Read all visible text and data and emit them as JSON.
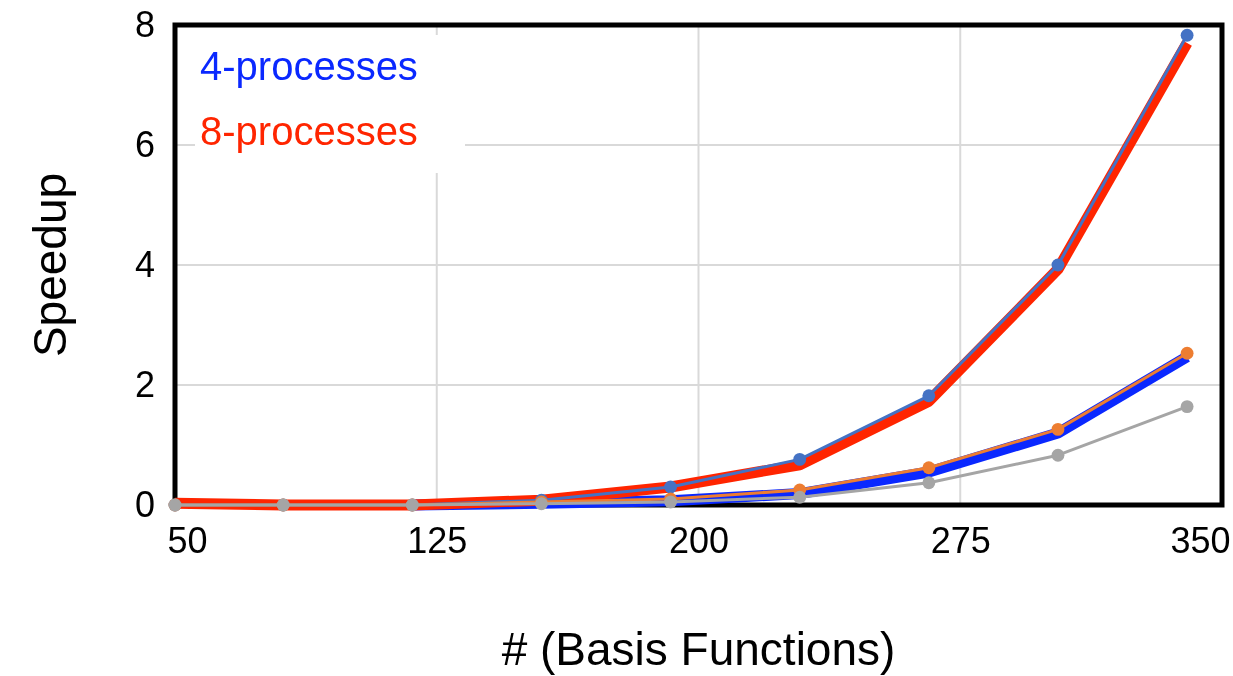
{
  "chart_data": {
    "type": "line",
    "xlabel": "# (Basis Functions)",
    "ylabel": "Speedup",
    "x": [
      50,
      81,
      118,
      155,
      192,
      229,
      266,
      303,
      340
    ],
    "xlim": [
      50,
      350
    ],
    "xticks": [
      50,
      125,
      200,
      275,
      350
    ],
    "ylim": [
      0,
      8
    ],
    "yticks": [
      0,
      2,
      4,
      6,
      8
    ],
    "grid": true,
    "legend": "top left",
    "series": [
      {
        "color": "#4472c4",
        "marker": "circle",
        "values": [
          0,
          0,
          0,
          0.08,
          0.3,
          0.76,
          1.82,
          4.0,
          7.83
        ]
      },
      {
        "color": "#ed7d31",
        "marker": "circle",
        "values": [
          0,
          0,
          0,
          0.05,
          0.1,
          0.25,
          0.62,
          1.26,
          2.53
        ]
      },
      {
        "color": "#a5a5a5",
        "marker": "circle",
        "values": [
          0,
          0,
          0,
          0.02,
          0.05,
          0.13,
          0.37,
          0.83,
          1.64
        ]
      },
      {
        "name": "4-processes",
        "color": "#0a28ff",
        "marker": "none",
        "values": [
          null,
          null,
          0,
          0.03,
          0.07,
          0.19,
          0.55,
          1.2,
          2.47
        ]
      },
      {
        "name": "8-processes",
        "color": "#ff2500",
        "marker": "none",
        "values": [
          0.03,
          0,
          0,
          0.08,
          0.3,
          0.67,
          1.73,
          3.93,
          7.7
        ]
      }
    ]
  }
}
